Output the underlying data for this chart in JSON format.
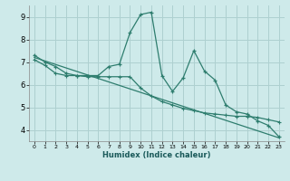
{
  "xlabel": "Humidex (Indice chaleur)",
  "bg_color": "#ceeaea",
  "grid_color": "#aed0d0",
  "line_color": "#2e7d6e",
  "xlim": [
    -0.5,
    23.5
  ],
  "ylim": [
    3.5,
    9.5
  ],
  "yticks": [
    4,
    5,
    6,
    7,
    8,
    9
  ],
  "xticks": [
    0,
    1,
    2,
    3,
    4,
    5,
    6,
    7,
    8,
    9,
    10,
    11,
    12,
    13,
    14,
    15,
    16,
    17,
    18,
    19,
    20,
    21,
    22,
    23
  ],
  "series1_x": [
    0,
    1,
    2,
    3,
    4,
    5,
    6,
    7,
    8,
    9,
    10,
    11,
    12,
    13,
    14,
    15,
    16,
    17,
    18,
    19,
    20,
    21,
    22,
    23
  ],
  "series1_y": [
    7.3,
    7.0,
    6.8,
    6.5,
    6.4,
    6.4,
    6.4,
    6.8,
    6.9,
    8.3,
    9.1,
    9.2,
    6.4,
    5.7,
    6.3,
    7.5,
    6.6,
    6.2,
    5.1,
    4.8,
    4.7,
    4.4,
    4.2,
    3.7
  ],
  "series2_x": [
    0,
    1,
    2,
    3,
    4,
    5,
    6,
    7,
    8,
    9,
    10,
    11,
    12,
    13,
    14,
    15,
    16,
    17,
    18,
    19,
    20,
    21,
    22,
    23
  ],
  "series2_y": [
    7.1,
    6.85,
    6.5,
    6.4,
    6.4,
    6.35,
    6.35,
    6.35,
    6.35,
    6.35,
    5.85,
    5.5,
    5.25,
    5.1,
    4.95,
    4.85,
    4.75,
    4.7,
    4.65,
    4.6,
    4.6,
    4.55,
    4.45,
    4.35
  ],
  "series3_x": [
    0,
    23
  ],
  "series3_y": [
    7.2,
    3.65
  ]
}
